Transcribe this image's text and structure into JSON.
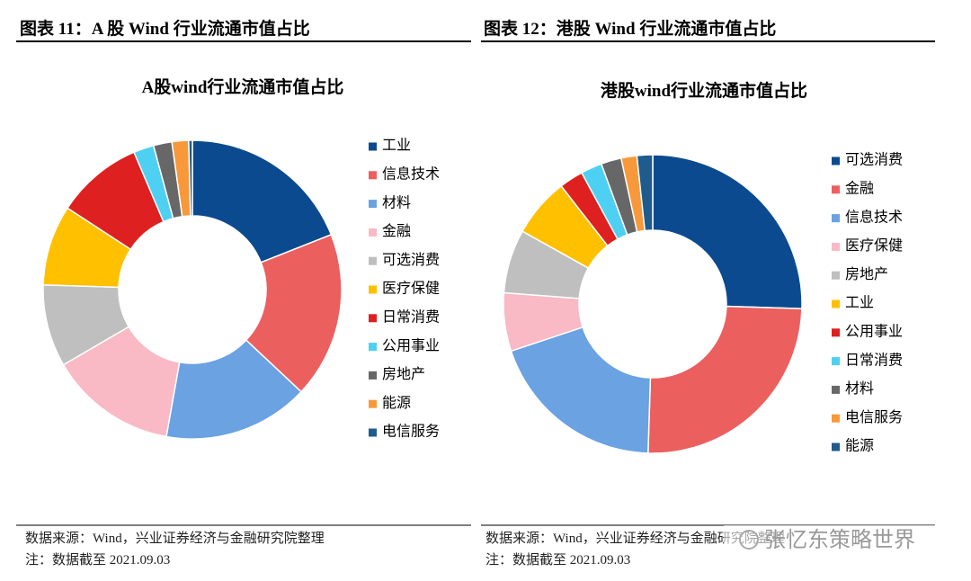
{
  "page": {
    "left_header": "图表 11：A 股 Wind 行业流通市值占比",
    "right_header": "图表 12：港股 Wind 行业流通市值占比",
    "left_source": "数据来源：Wind，兴业证券经济与金融研究院整理",
    "left_note": "注：数据截至 2021.09.03",
    "right_source": "数据来源：Wind，兴业证券经济与金融研究院整理",
    "right_note": "注：数据截至 2021.09.03",
    "watermark": "张忆东策略世界"
  },
  "chart_data": [
    {
      "type": "donut",
      "title": "A股wind行业流通市值占比",
      "categories": [
        "工业",
        "信息技术",
        "材料",
        "金融",
        "可选消费",
        "医疗保健",
        "日常消费",
        "公用事业",
        "房地产",
        "能源",
        "电信服务"
      ],
      "values": [
        19,
        18,
        15.8,
        13.8,
        8.9,
        8.7,
        9.4,
        2.2,
        2,
        1.8,
        0.4
      ],
      "colors": [
        "#0b4a8f",
        "#ec5f5f",
        "#6aa2e2",
        "#f9b9c5",
        "#bfbfbf",
        "#ffc000",
        "#de2020",
        "#4ed0f2",
        "#676767",
        "#f7993a",
        "#1f5b8c"
      ]
    },
    {
      "type": "donut",
      "title": "港股wind行业流通市值占比",
      "categories": [
        "可选消费",
        "金融",
        "信息技术",
        "医疗保健",
        "房地产",
        "工业",
        "公用事业",
        "日常消费",
        "材料",
        "电信服务",
        "能源"
      ],
      "values": [
        25.5,
        25,
        19.4,
        6.3,
        6.9,
        6.4,
        2.6,
        2.3,
        2.2,
        1.7,
        1.7
      ],
      "colors": [
        "#0b4a8f",
        "#ec5f5f",
        "#6aa2e2",
        "#f9b9c5",
        "#bfbfbf",
        "#ffc000",
        "#de2020",
        "#4ed0f2",
        "#676767",
        "#f7993a",
        "#1f5b8c"
      ]
    }
  ]
}
